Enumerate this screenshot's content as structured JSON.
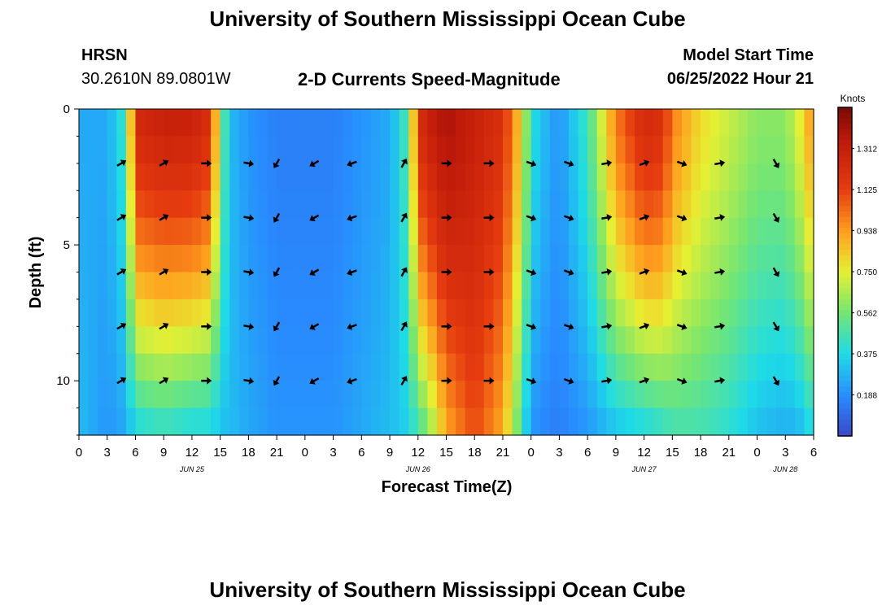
{
  "page": {
    "title": "University of Southern Mississippi Ocean Cube",
    "station": "HRSN",
    "coords": "30.2610N  89.0801W",
    "subtitle": "2-D Currents Speed-Magnitude",
    "model_label": "Model Start Time",
    "model_time": "06/25/2022 Hour 21",
    "bottom_title": "University of Southern Mississippi Ocean Cube"
  },
  "chart_data": {
    "type": "heatmap",
    "title": "2-D Currents Speed-Magnitude",
    "xlabel": "Forecast Time(Z)",
    "ylabel": "Depth (ft)",
    "xlim": [
      0,
      78
    ],
    "ylim": [
      0,
      12
    ],
    "y_ticks": [
      "0",
      "5",
      "10"
    ],
    "y_tick_values": [
      0,
      5,
      10
    ],
    "x_ticks": [
      "0",
      "3",
      "6",
      "9",
      "12",
      "15",
      "18",
      "21",
      "0",
      "3",
      "6",
      "9",
      "12",
      "15",
      "18",
      "21",
      "0",
      "3",
      "6",
      "9",
      "12",
      "15",
      "18",
      "21",
      "0",
      "3",
      "6"
    ],
    "date_labels": [
      {
        "text": "JUN 25",
        "hour": 12
      },
      {
        "text": "JUN 26",
        "hour": 36
      },
      {
        "text": "JUN 27",
        "hour": 60
      },
      {
        "text": "JUN 28",
        "hour": 75
      }
    ],
    "colorbar": {
      "label": "Knots",
      "ticks": [
        "0.188",
        "0.375",
        "0.562",
        "0.750",
        "0.938",
        "1.125",
        "1.312"
      ],
      "tick_values": [
        0.188,
        0.375,
        0.562,
        0.75,
        0.938,
        1.125,
        1.312
      ],
      "range": [
        0.0,
        1.5
      ]
    },
    "speed_profile": {
      "description": "approximate speed (knots) vs forecast hour at surface and bottom",
      "hours": [
        0,
        3,
        5,
        6,
        9,
        12,
        14,
        15,
        16,
        18,
        21,
        24,
        27,
        30,
        33,
        35,
        36,
        37,
        39,
        42,
        45,
        47,
        48,
        50,
        51,
        54,
        57,
        60,
        62,
        63,
        66,
        69,
        72,
        75,
        77,
        78
      ],
      "surface": [
        0.25,
        0.25,
        0.45,
        1.25,
        1.3,
        1.3,
        1.2,
        0.6,
        0.3,
        0.2,
        0.15,
        0.15,
        0.15,
        0.2,
        0.25,
        0.5,
        1.2,
        1.3,
        1.4,
        1.3,
        1.2,
        0.8,
        0.4,
        0.25,
        0.2,
        0.45,
        1.0,
        1.25,
        1.2,
        1.0,
        0.8,
        0.7,
        0.6,
        0.6,
        0.8,
        1.0
      ],
      "bottom": [
        0.3,
        0.2,
        0.25,
        0.35,
        0.4,
        0.35,
        0.35,
        0.3,
        0.3,
        0.25,
        0.2,
        0.2,
        0.2,
        0.25,
        0.3,
        0.35,
        0.45,
        0.55,
        0.9,
        1.1,
        0.9,
        0.45,
        0.2,
        0.15,
        0.15,
        0.2,
        0.3,
        0.35,
        0.4,
        0.45,
        0.45,
        0.4,
        0.3,
        0.25,
        0.3,
        0.4
      ]
    },
    "arrow_depths_ft": [
      2,
      4,
      6,
      8,
      10
    ],
    "arrows": [
      {
        "hour": 4.5,
        "angle": -30
      },
      {
        "hour": 9,
        "angle": -30
      },
      {
        "hour": 13.5,
        "angle": 0
      },
      {
        "hour": 18,
        "angle": 10
      },
      {
        "hour": 21,
        "angle": 120
      },
      {
        "hour": 25,
        "angle": 150
      },
      {
        "hour": 29,
        "angle": 160
      },
      {
        "hour": 34.5,
        "angle": -60
      },
      {
        "hour": 39,
        "angle": 0
      },
      {
        "hour": 43.5,
        "angle": 0
      },
      {
        "hour": 48,
        "angle": 20
      },
      {
        "hour": 52,
        "angle": 20
      },
      {
        "hour": 56,
        "angle": -10
      },
      {
        "hour": 60,
        "angle": -20
      },
      {
        "hour": 64,
        "angle": 20
      },
      {
        "hour": 68,
        "angle": -10
      },
      {
        "hour": 74,
        "angle": 60
      }
    ]
  }
}
